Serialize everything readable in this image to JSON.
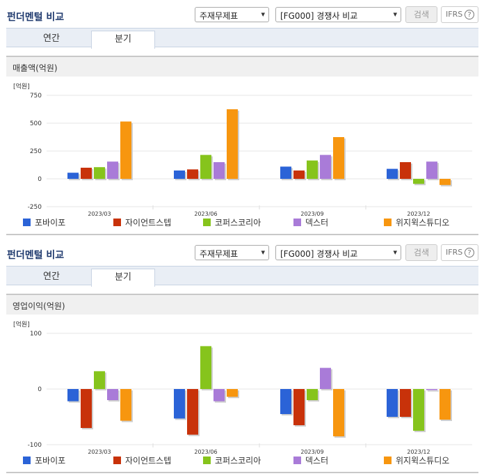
{
  "panels": [
    {
      "title": "펀더멘털 비교",
      "select_type": "주재무제표",
      "select_group": "[FG000] 경쟁사 비교",
      "search_label": "검색",
      "ifrs_label": "IFRS",
      "help_glyph": "?",
      "tabs": [
        {
          "label": "연간"
        },
        {
          "label": "분기"
        }
      ],
      "active_tab": "분기",
      "section_label": "매출액(억원)"
    },
    {
      "title": "펀더멘털 비교",
      "select_type": "주재무제표",
      "select_group": "[FG000] 경쟁사 비교",
      "search_label": "검색",
      "ifrs_label": "IFRS",
      "help_glyph": "?",
      "tabs": [
        {
          "label": "연간"
        },
        {
          "label": "분기"
        }
      ],
      "active_tab": "분기",
      "section_label": "영업이익(억원)"
    }
  ],
  "colors": {
    "포바이포": "#2b63d7",
    "자이언트스텝": "#c8320a",
    "코퍼스코리아": "#86c41c",
    "덱스터": "#a97bd8",
    "위지윅스튜디오": "#f7960f"
  },
  "chart_data": [
    {
      "type": "bar",
      "unit_label": "[억원]",
      "categories": [
        "2023/03",
        "2023/06",
        "2023/09",
        "2023/12"
      ],
      "ylim": [
        -250,
        750
      ],
      "yticks": [
        "750",
        "500",
        "250",
        "0",
        "-250"
      ],
      "grid": true,
      "legend": "bottom",
      "series": [
        {
          "name": "포바이포",
          "values": [
            55,
            75,
            110,
            90
          ]
        },
        {
          "name": "자이언트스텝",
          "values": [
            100,
            85,
            75,
            150
          ]
        },
        {
          "name": "코퍼스코리아",
          "values": [
            105,
            215,
            165,
            -45
          ]
        },
        {
          "name": "덱스터",
          "values": [
            155,
            150,
            215,
            155
          ]
        },
        {
          "name": "위지윅스튜디오",
          "values": [
            515,
            625,
            375,
            -55
          ]
        }
      ]
    },
    {
      "type": "bar",
      "unit_label": "[억원]",
      "categories": [
        "2023/03",
        "2023/06",
        "2023/09",
        "2023/12"
      ],
      "ylim": [
        -100,
        100
      ],
      "yticks": [
        "100",
        "0",
        "-100"
      ],
      "grid": true,
      "legend": "bottom",
      "series": [
        {
          "name": "포바이포",
          "values": [
            -22,
            -53,
            -45,
            -50
          ]
        },
        {
          "name": "자이언트스텝",
          "values": [
            -70,
            -82,
            -65,
            -50
          ]
        },
        {
          "name": "코퍼스코리아",
          "values": [
            32,
            77,
            -20,
            -75
          ]
        },
        {
          "name": "덱스터",
          "values": [
            -20,
            -22,
            38,
            -2
          ]
        },
        {
          "name": "위지윅스튜디오",
          "values": [
            -57,
            -14,
            -85,
            -55
          ]
        }
      ]
    }
  ]
}
